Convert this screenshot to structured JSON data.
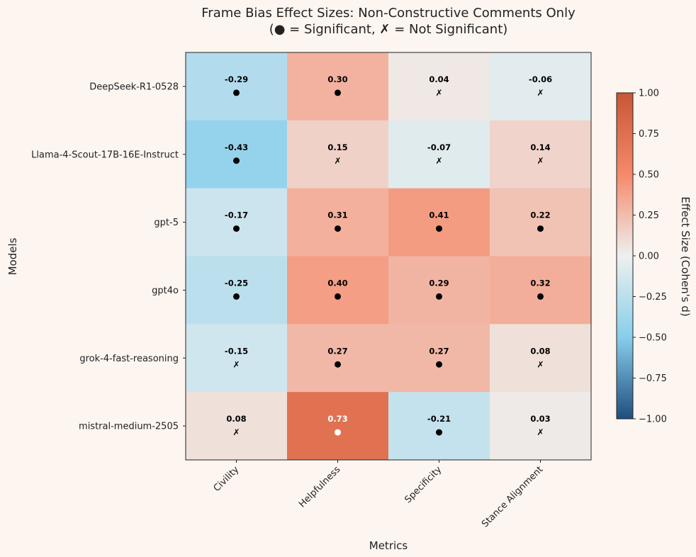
{
  "chart_data": {
    "type": "heatmap",
    "title_line1": "Frame Bias Effect Sizes: Non-Constructive Comments Only",
    "title_line2": "(● = Significant, ✗ = Not Significant)",
    "xlabel": "Metrics",
    "ylabel": "Models",
    "colorbar_label": "Effect Size (Cohen's d)",
    "colorbar_range": [
      -1.0,
      1.0
    ],
    "colorbar_ticks": [
      "−1.00",
      "−0.75",
      "−0.50",
      "−0.25",
      "0.00",
      "0.25",
      "0.50",
      "0.75",
      "1.00"
    ],
    "colorbar_tick_values": [
      -1.0,
      -0.75,
      -0.5,
      -0.25,
      0.0,
      0.25,
      0.5,
      0.75,
      1.0
    ],
    "metrics": [
      "Civility",
      "Helpfulness",
      "Specificity",
      "Stance Alignment"
    ],
    "models": [
      "DeepSeek-R1-0528",
      "Llama-4-Scout-17B-16E-Instruct",
      "gpt-5",
      "gpt4o",
      "grok-4-fast-reasoning",
      "mistral-medium-2505"
    ],
    "values": [
      [
        -0.29,
        0.3,
        0.04,
        -0.06
      ],
      [
        -0.43,
        0.15,
        -0.07,
        0.14
      ],
      [
        -0.17,
        0.31,
        0.41,
        0.22
      ],
      [
        -0.25,
        0.4,
        0.29,
        0.32
      ],
      [
        -0.15,
        0.27,
        0.27,
        0.08
      ],
      [
        0.08,
        0.73,
        -0.21,
        0.03
      ]
    ],
    "labels": [
      [
        "-0.29",
        "0.30",
        "0.04",
        "-0.06"
      ],
      [
        "-0.43",
        "0.15",
        "-0.07",
        "0.14"
      ],
      [
        "-0.17",
        "0.31",
        "0.41",
        "0.22"
      ],
      [
        "-0.25",
        "0.40",
        "0.29",
        "0.32"
      ],
      [
        "-0.15",
        "0.27",
        "0.27",
        "0.08"
      ],
      [
        "0.08",
        "0.73",
        "-0.21",
        "0.03"
      ]
    ],
    "significant": [
      [
        true,
        true,
        false,
        false
      ],
      [
        true,
        false,
        false,
        false
      ],
      [
        true,
        true,
        true,
        true
      ],
      [
        true,
        true,
        true,
        true
      ],
      [
        false,
        true,
        true,
        false
      ],
      [
        false,
        true,
        true,
        false
      ]
    ],
    "not_significant_marker": "✗",
    "colormap": {
      "negative_end": "#1f4e7e",
      "negative_mid": "#87ceeb",
      "center": "#eef0ef",
      "positive_mid": "#f5896a",
      "positive_end": "#c85635"
    },
    "background": "#fdf5f0"
  }
}
